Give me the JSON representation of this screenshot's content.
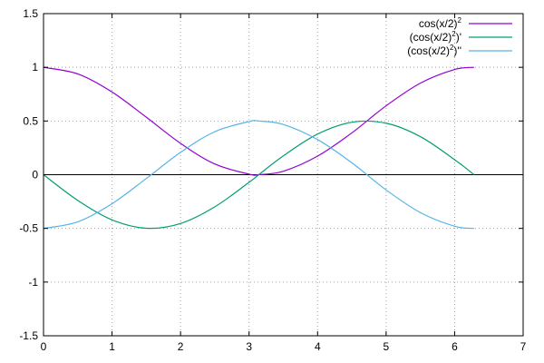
{
  "chart_data": {
    "type": "line",
    "title": "",
    "xlabel": "",
    "ylabel": "",
    "xlim": [
      0,
      7
    ],
    "ylim": [
      -1.5,
      1.5
    ],
    "grid": true,
    "legend_position": "top-right",
    "x_ticks": [
      "0",
      "1",
      "2",
      "3",
      "4",
      "5",
      "6",
      "7"
    ],
    "y_ticks": [
      "-1.5",
      "-1",
      "-0.5",
      "0",
      "0.5",
      "1",
      "1.5"
    ],
    "series": [
      {
        "name": "cos(x/2)",
        "name_sup": "2",
        "name_suffix": "",
        "color": "#9400d3",
        "x": [
          0,
          0.5,
          1,
          1.5,
          2,
          2.5,
          3,
          3.14159,
          3.5,
          4,
          4.5,
          5,
          5.5,
          6,
          6.28318
        ],
        "values": [
          1,
          0.9388,
          0.7702,
          0.5354,
          0.2919,
          0.0995,
          0.005,
          0,
          0.0323,
          0.1732,
          0.3893,
          0.6418,
          0.8527,
          0.98,
          1
        ]
      },
      {
        "name": "(cos(x/2)",
        "name_sup": "2",
        "name_suffix": ")'",
        "color": "#009e73",
        "x": [
          0,
          0.5,
          1,
          1.5,
          2,
          2.5,
          3,
          3.14159,
          3.5,
          4,
          4.5,
          5,
          5.5,
          6,
          6.28318
        ],
        "values": [
          0,
          -0.2397,
          -0.4207,
          -0.4987,
          -0.4546,
          -0.2992,
          -0.0706,
          0,
          0.1754,
          0.3784,
          0.4888,
          0.4795,
          0.3543,
          0.1397,
          0
        ]
      },
      {
        "name": "(cos(x/2)",
        "name_sup": "2",
        "name_suffix": ")''",
        "color": "#56b4e9",
        "x": [
          0,
          0.5,
          1,
          1.5,
          2,
          2.5,
          3,
          3.14159,
          3.5,
          4,
          4.5,
          5,
          5.5,
          6,
          6.28318
        ],
        "values": [
          -0.5,
          -0.4388,
          -0.2702,
          -0.0354,
          0.2081,
          0.4005,
          0.495,
          0.5,
          0.4677,
          0.3268,
          0.1107,
          -0.1418,
          -0.3527,
          -0.48,
          -0.5
        ]
      }
    ]
  }
}
